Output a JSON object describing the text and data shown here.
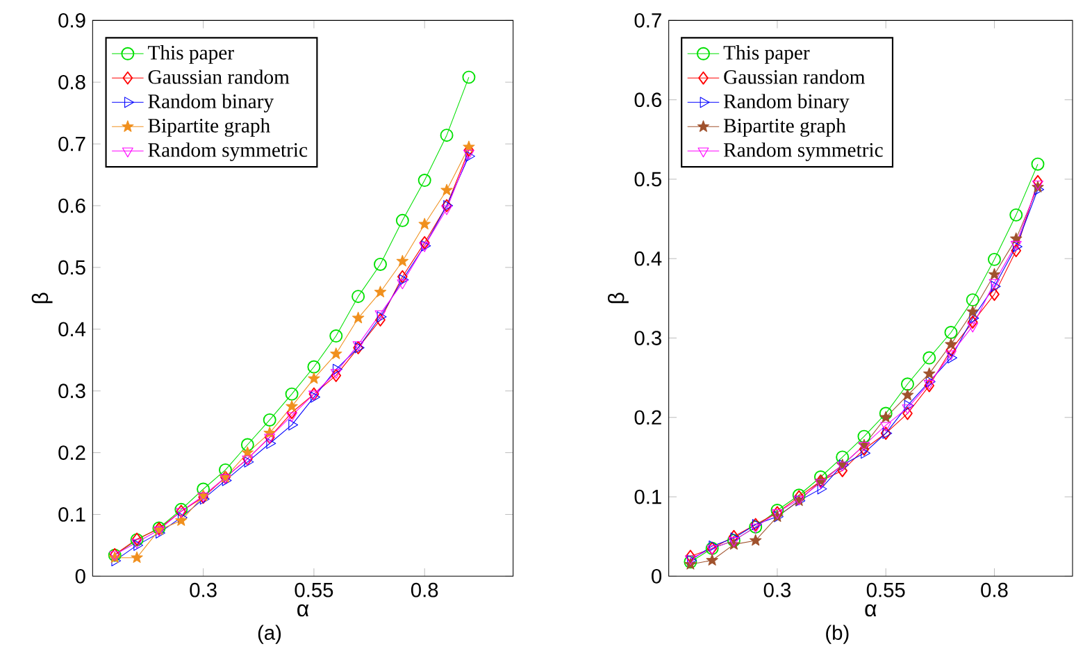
{
  "chart_data": [
    {
      "type": "line",
      "xlabel": "α",
      "ylabel": "β",
      "annotations": [
        "(a)"
      ],
      "legend": "top left",
      "x": [
        0.1,
        0.15,
        0.2,
        0.25,
        0.3,
        0.35,
        0.4,
        0.45,
        0.5,
        0.55,
        0.6,
        0.65,
        0.7,
        0.75,
        0.8,
        0.85,
        0.9
      ],
      "xlim": [
        0.05,
        1.0
      ],
      "xticks": [
        0.3,
        0.55,
        0.8
      ],
      "ylim": [
        0,
        0.9
      ],
      "yticks": [
        0,
        0.1,
        0.2,
        0.3,
        0.4,
        0.5,
        0.6,
        0.7,
        0.8,
        0.9
      ],
      "series": [
        {
          "name": "This paper",
          "color": "#00e000",
          "marker": "circle",
          "values": [
            0.034,
            0.059,
            0.078,
            0.108,
            0.141,
            0.172,
            0.213,
            0.253,
            0.295,
            0.339,
            0.389,
            0.453,
            0.505,
            0.576,
            0.641,
            0.714,
            0.808
          ]
        },
        {
          "name": "Gaussian random",
          "color": "#ff0000",
          "marker": "diamond",
          "values": [
            0.035,
            0.06,
            0.077,
            0.105,
            0.128,
            0.16,
            0.19,
            0.225,
            0.265,
            0.295,
            0.325,
            0.37,
            0.415,
            0.485,
            0.54,
            0.6,
            0.69
          ]
        },
        {
          "name": "Random binary",
          "color": "#0000ff",
          "marker": "triangle-right",
          "values": [
            0.025,
            0.05,
            0.07,
            0.095,
            0.125,
            0.155,
            0.185,
            0.215,
            0.245,
            0.29,
            0.335,
            0.37,
            0.42,
            0.48,
            0.535,
            0.6,
            0.68
          ]
        },
        {
          "name": "Bipartite graph",
          "color": "#f0901e",
          "marker": "star",
          "values": [
            0.03,
            0.03,
            0.075,
            0.09,
            0.13,
            0.16,
            0.2,
            0.232,
            0.275,
            0.32,
            0.36,
            0.418,
            0.46,
            0.51,
            0.57,
            0.625,
            0.695
          ]
        },
        {
          "name": "Random symmetric",
          "color": "#ff00ff",
          "marker": "triangle-down",
          "values": [
            0.035,
            0.055,
            0.075,
            0.105,
            0.13,
            0.16,
            0.19,
            0.225,
            0.26,
            0.295,
            0.33,
            0.375,
            0.425,
            0.475,
            0.535,
            0.595,
            0.685
          ]
        }
      ]
    },
    {
      "type": "line",
      "xlabel": "α",
      "ylabel": "β",
      "annotations": [
        "(b)"
      ],
      "legend": "top left",
      "x": [
        0.1,
        0.15,
        0.2,
        0.25,
        0.3,
        0.35,
        0.4,
        0.45,
        0.5,
        0.55,
        0.6,
        0.65,
        0.7,
        0.75,
        0.8,
        0.85,
        0.9
      ],
      "xlim": [
        0.05,
        0.98
      ],
      "xticks": [
        0.3,
        0.55,
        0.8
      ],
      "ylim": [
        0,
        0.7
      ],
      "yticks": [
        0,
        0.1,
        0.2,
        0.3,
        0.4,
        0.5,
        0.6,
        0.7
      ],
      "series": [
        {
          "name": "This paper",
          "color": "#00e000",
          "marker": "circle",
          "values": [
            0.018,
            0.035,
            0.045,
            0.062,
            0.083,
            0.102,
            0.125,
            0.15,
            0.176,
            0.205,
            0.242,
            0.275,
            0.307,
            0.348,
            0.399,
            0.455,
            0.519
          ]
        },
        {
          "name": "Gaussian random",
          "color": "#ff0000",
          "marker": "diamond",
          "values": [
            0.025,
            0.035,
            0.05,
            0.065,
            0.08,
            0.1,
            0.12,
            0.133,
            0.16,
            0.18,
            0.205,
            0.24,
            0.285,
            0.32,
            0.355,
            0.41,
            0.497
          ]
        },
        {
          "name": "Random binary",
          "color": "#0000ff",
          "marker": "triangle-right",
          "values": [
            0.02,
            0.038,
            0.048,
            0.065,
            0.075,
            0.095,
            0.11,
            0.14,
            0.155,
            0.18,
            0.215,
            0.245,
            0.275,
            0.325,
            0.365,
            0.415,
            0.487
          ]
        },
        {
          "name": "Bipartite graph",
          "color": "#a0522d",
          "marker": "star",
          "values": [
            0.015,
            0.02,
            0.04,
            0.045,
            0.075,
            0.095,
            0.12,
            0.14,
            0.165,
            0.2,
            0.228,
            0.255,
            0.292,
            0.333,
            0.38,
            0.425,
            0.49
          ]
        },
        {
          "name": "Random symmetric",
          "color": "#ff00ff",
          "marker": "triangle-down",
          "values": [
            0.022,
            0.035,
            0.045,
            0.062,
            0.08,
            0.097,
            0.118,
            0.14,
            0.165,
            0.19,
            0.212,
            0.243,
            0.28,
            0.315,
            0.37,
            0.418,
            0.494
          ]
        }
      ]
    }
  ]
}
